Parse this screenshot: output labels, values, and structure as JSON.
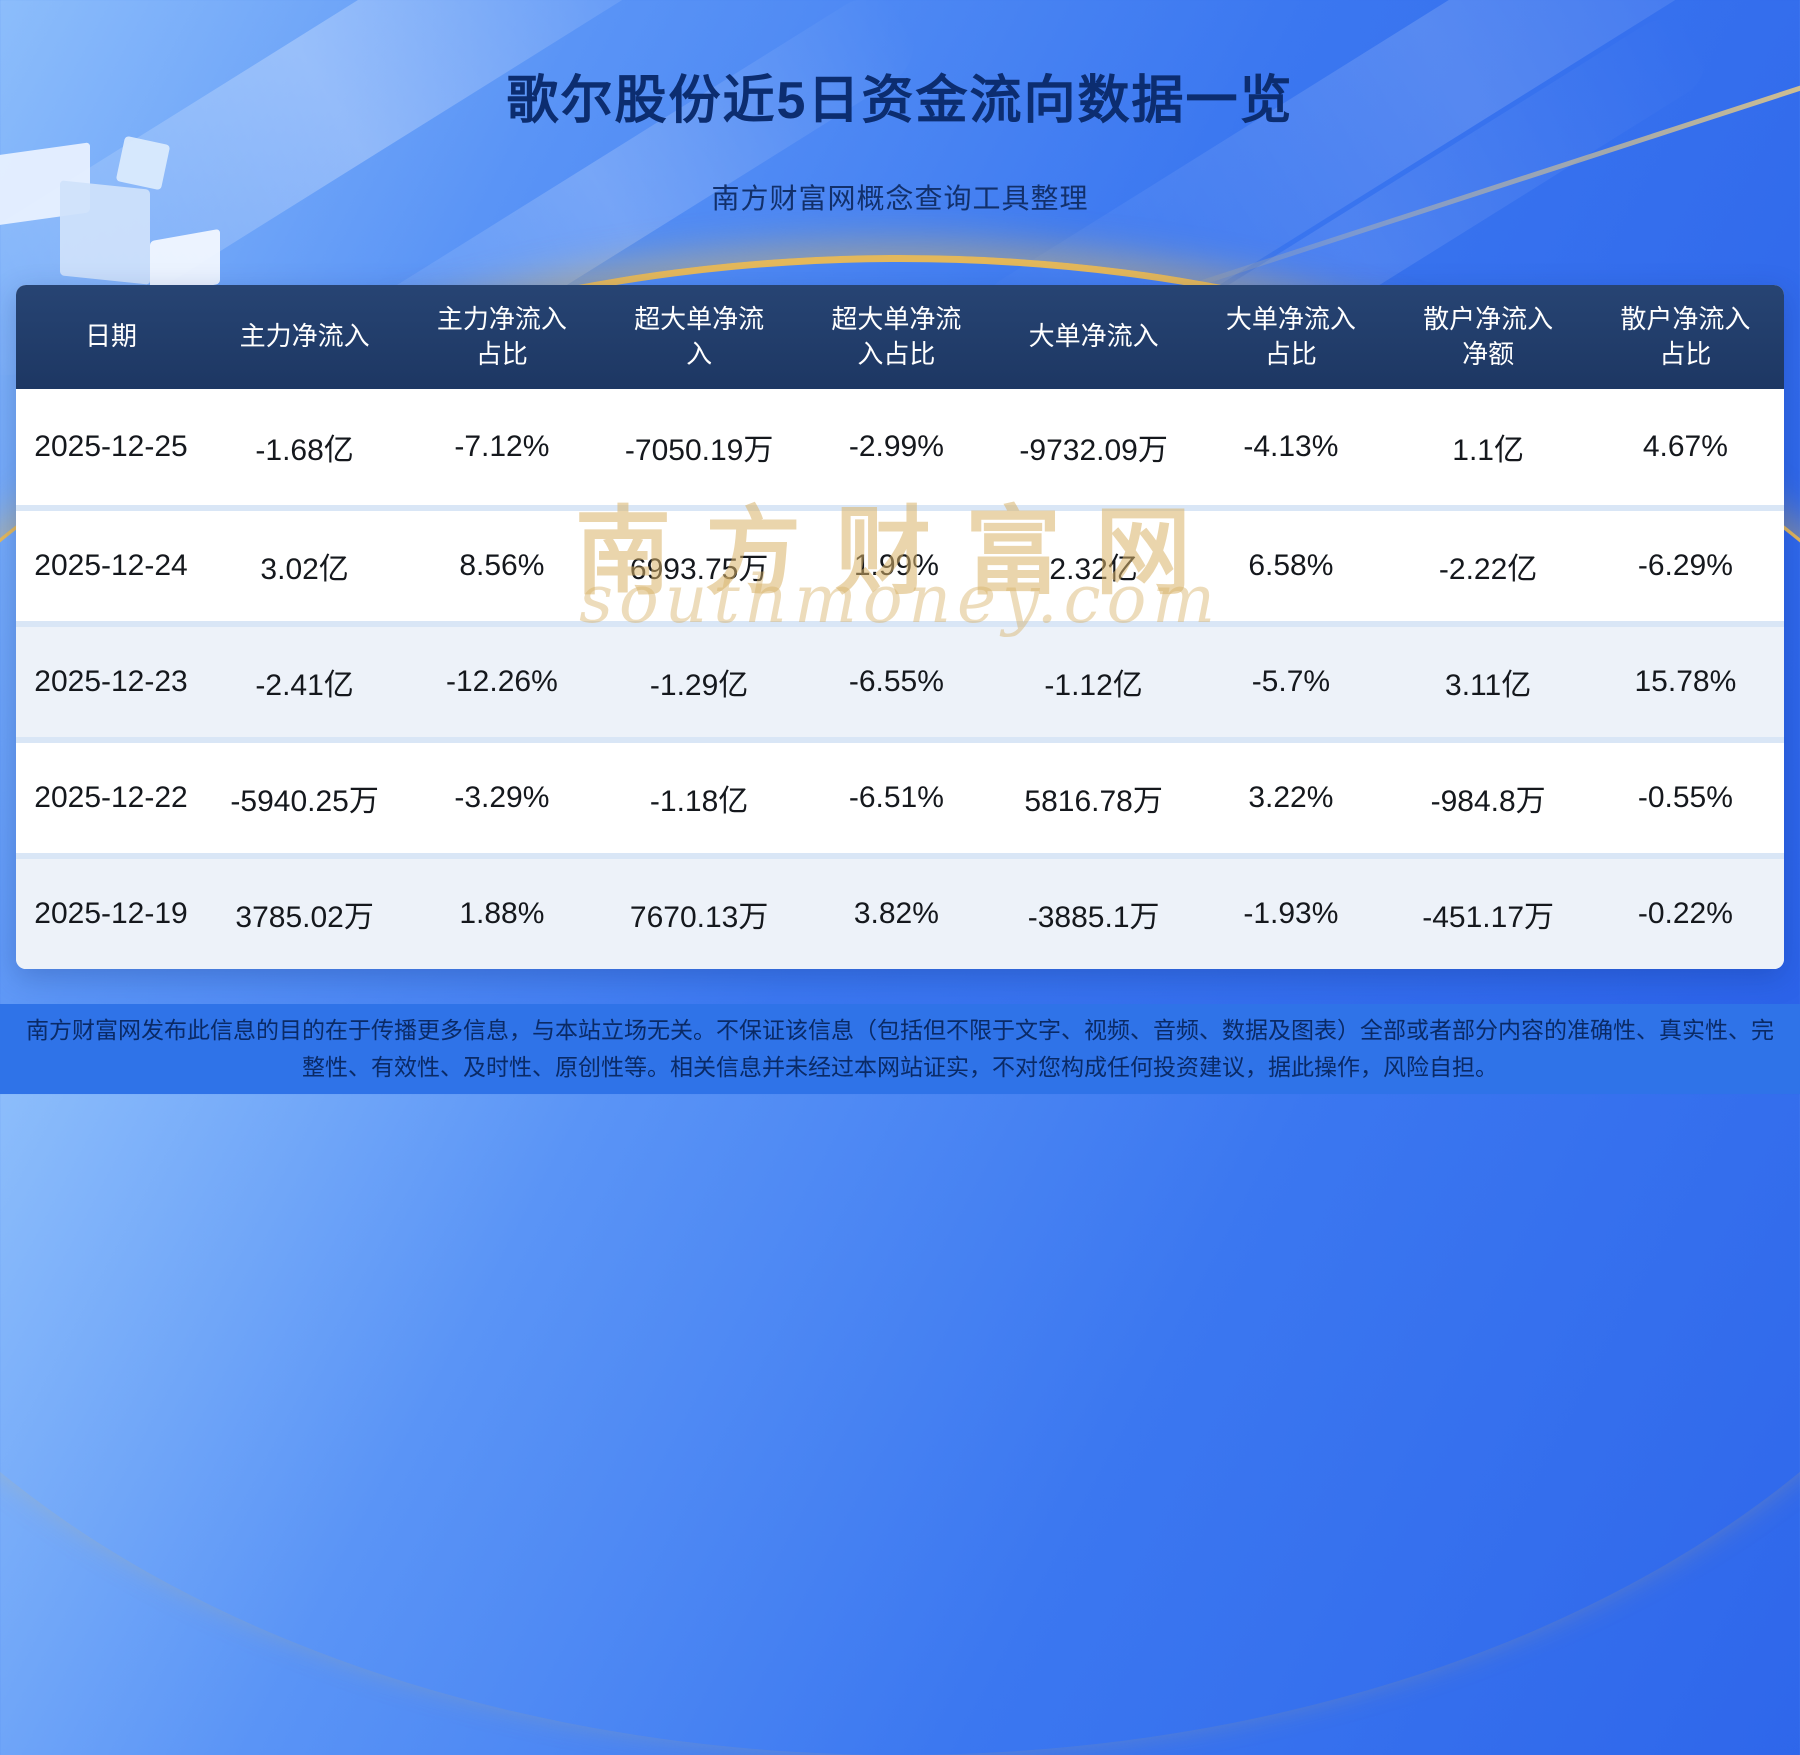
{
  "page": {
    "title": "歌尔股份近5日资金流向数据一览",
    "subtitle": "南方财富网概念查询工具整理",
    "watermark_cn": "南方财富网",
    "watermark_en": "southmoney.com",
    "disclaimer": "南方财富网发布此信息的目的在于传播更多信息，与本站立场无关。不保证该信息（包括但不限于文字、视频、音频、数据及图表）全部或者部分内容的准确性、真实性、完整性、有效性、及时性、原创性等。相关信息并未经过本网站证实，不对您构成任何投资建议，据此操作，风险自担。"
  },
  "colors": {
    "header_bg": "#1d3763",
    "accent_gold": "#ecba52",
    "footer_bg": "#2f73e8",
    "row_alt_bg": "#edf2f9"
  },
  "chart_data": {
    "type": "table",
    "title": "歌尔股份近5日资金流向数据一览",
    "columns": [
      "日期",
      "主力净流入",
      "主力净流入占比",
      "超大单净流入",
      "超大单净流入占比",
      "大单净流入",
      "大单净流入占比",
      "散户净流入净额",
      "散户净流入占比"
    ],
    "rows": [
      [
        "2025-12-25",
        "-1.68亿",
        "-7.12%",
        "-7050.19万",
        "-2.99%",
        "-9732.09万",
        "-4.13%",
        "1.1亿",
        "4.67%"
      ],
      [
        "2025-12-24",
        "3.02亿",
        "8.56%",
        "6993.75万",
        "1.99%",
        "2.32亿",
        "6.58%",
        "-2.22亿",
        "-6.29%"
      ],
      [
        "2025-12-23",
        "-2.41亿",
        "-12.26%",
        "-1.29亿",
        "-6.55%",
        "-1.12亿",
        "-5.7%",
        "3.11亿",
        "15.78%"
      ],
      [
        "2025-12-22",
        "-5940.25万",
        "-3.29%",
        "-1.18亿",
        "-6.51%",
        "5816.78万",
        "3.22%",
        "-984.8万",
        "-0.55%"
      ],
      [
        "2025-12-19",
        "3785.02万",
        "1.88%",
        "7670.13万",
        "3.82%",
        "-3885.1万",
        "-1.93%",
        "-451.17万",
        "-0.22%"
      ]
    ]
  }
}
